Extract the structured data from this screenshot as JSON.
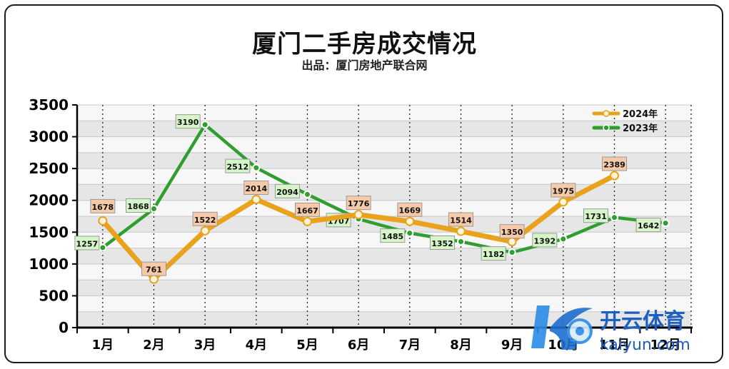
{
  "chart_data": {
    "type": "line",
    "title": "厦门二手房成交情况",
    "subtitle": "出品：厦门房地产联合网",
    "categories": [
      "1月",
      "2月",
      "3月",
      "4月",
      "5月",
      "6月",
      "7月",
      "8月",
      "9月",
      "10月",
      "11月",
      "12月"
    ],
    "ylim": [
      0,
      3500
    ],
    "yticks": [
      0,
      500,
      1000,
      1500,
      2000,
      2500,
      3000,
      3500
    ],
    "grid": true,
    "legend_position": "top-right",
    "series": [
      {
        "name": "2024年",
        "color": "#e8a21c",
        "label_bg": "#f6c9a8",
        "values": [
          1678,
          761,
          1522,
          2014,
          1667,
          1776,
          1669,
          1514,
          1350,
          1975,
          2389,
          null
        ]
      },
      {
        "name": "2023年",
        "color": "#2e9e2e",
        "label_bg": "#d6f5c8",
        "values": [
          1257,
          1868,
          3190,
          2512,
          2094,
          1707,
          1485,
          1352,
          1182,
          1392,
          1731,
          1642
        ]
      }
    ]
  },
  "watermark": {
    "brand": "开云体育",
    "url": "kaiyun.com"
  }
}
